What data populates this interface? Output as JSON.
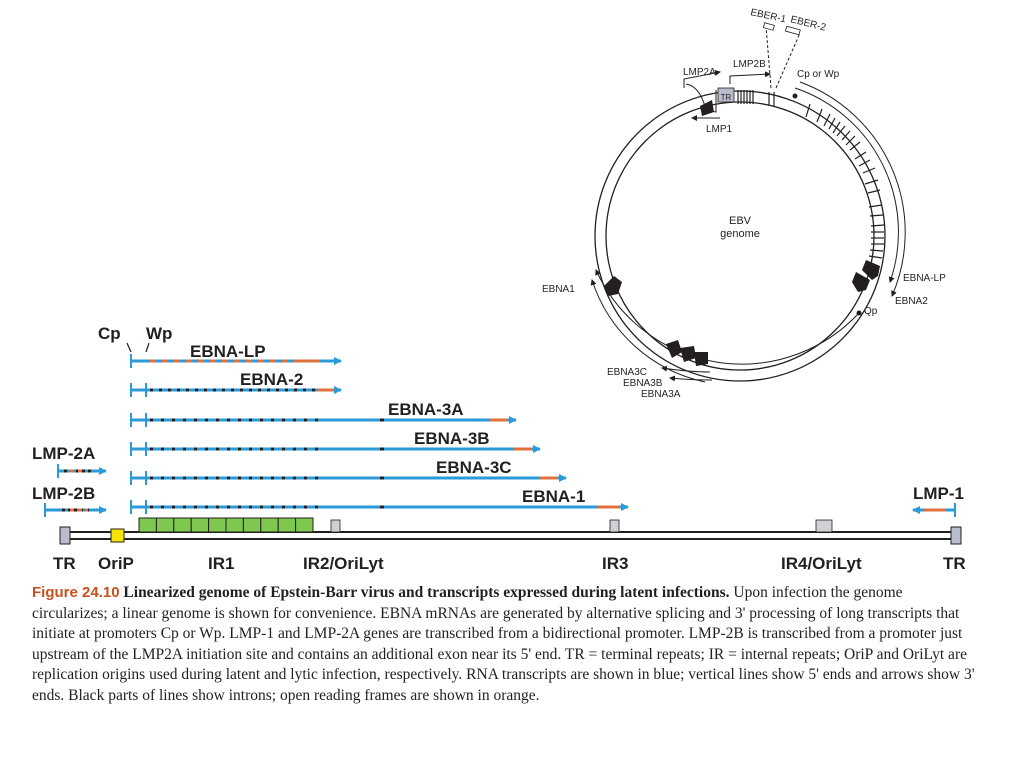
{
  "circular_map": {
    "center_label_line1": "EBV",
    "center_label_line2": "genome",
    "labels": {
      "eber1": "EBER-1",
      "eber2": "EBER-2",
      "lmp2a": "LMP2A",
      "lmp2b": "LMP2B",
      "tr": "TR",
      "lmp1": "LMP1",
      "cp_or_wp": "Cp or Wp",
      "ebna_lp": "EBNA-LP",
      "ebna2": "EBNA2",
      "qp": "Qp",
      "ebna1": "EBNA1",
      "ebna3c": "EBNA3C",
      "ebna3b": "EBNA3B",
      "ebna3a": "EBNA3A"
    }
  },
  "linear_map": {
    "promoters": {
      "cp": "Cp",
      "wp": "Wp"
    },
    "transcripts": [
      {
        "label": "EBNA-LP"
      },
      {
        "label": "EBNA-2"
      },
      {
        "label": "EBNA-3A"
      },
      {
        "label": "EBNA-3B"
      },
      {
        "label": "EBNA-3C"
      },
      {
        "label": "EBNA-1"
      },
      {
        "label": "LMP-2A"
      },
      {
        "label": "LMP-2B"
      },
      {
        "label": "LMP-1"
      }
    ],
    "genome_labels": {
      "tr_left": "TR",
      "orip": "OriP",
      "ir1": "IR1",
      "ir2": "IR2/OriLyt",
      "ir3": "IR3",
      "ir4": "IR4/OriLyt",
      "tr_right": "TR"
    }
  },
  "colors": {
    "transcript_blue": "#2a9ad9",
    "orf_orange": "#e0703c",
    "intron_black": "#231f20",
    "ir1_green": "#7ec850",
    "orip_yellow": "#f4e400",
    "tr_gray": "#b8bccc",
    "caption_accent": "#c8501e"
  },
  "caption": {
    "figure_number": "Figure 24.10",
    "title": "Linearized genome of Epstein-Barr virus and transcripts expressed during latent infections.",
    "body": "Upon infection the genome circularizes; a linear genome is shown for convenience. EBNA mRNAs are generated by alternative splicing and 3' processing of long transcripts that initiate at promoters Cp or Wp. LMP-1 and LMP-2A genes are transcribed from a bidirectional promoter. LMP-2B is transcribed from a promoter just upstream of the LMP2A initiation site and contains an additional exon near its 5' end. TR = terminal repeats; IR = internal repeats; OriP and OriLyt are replication origins used during latent and lytic infection, respectively. RNA transcripts are shown in blue; vertical lines show 5' ends and arrows show 3' ends. Black parts of lines show introns; open reading frames are shown in orange."
  }
}
